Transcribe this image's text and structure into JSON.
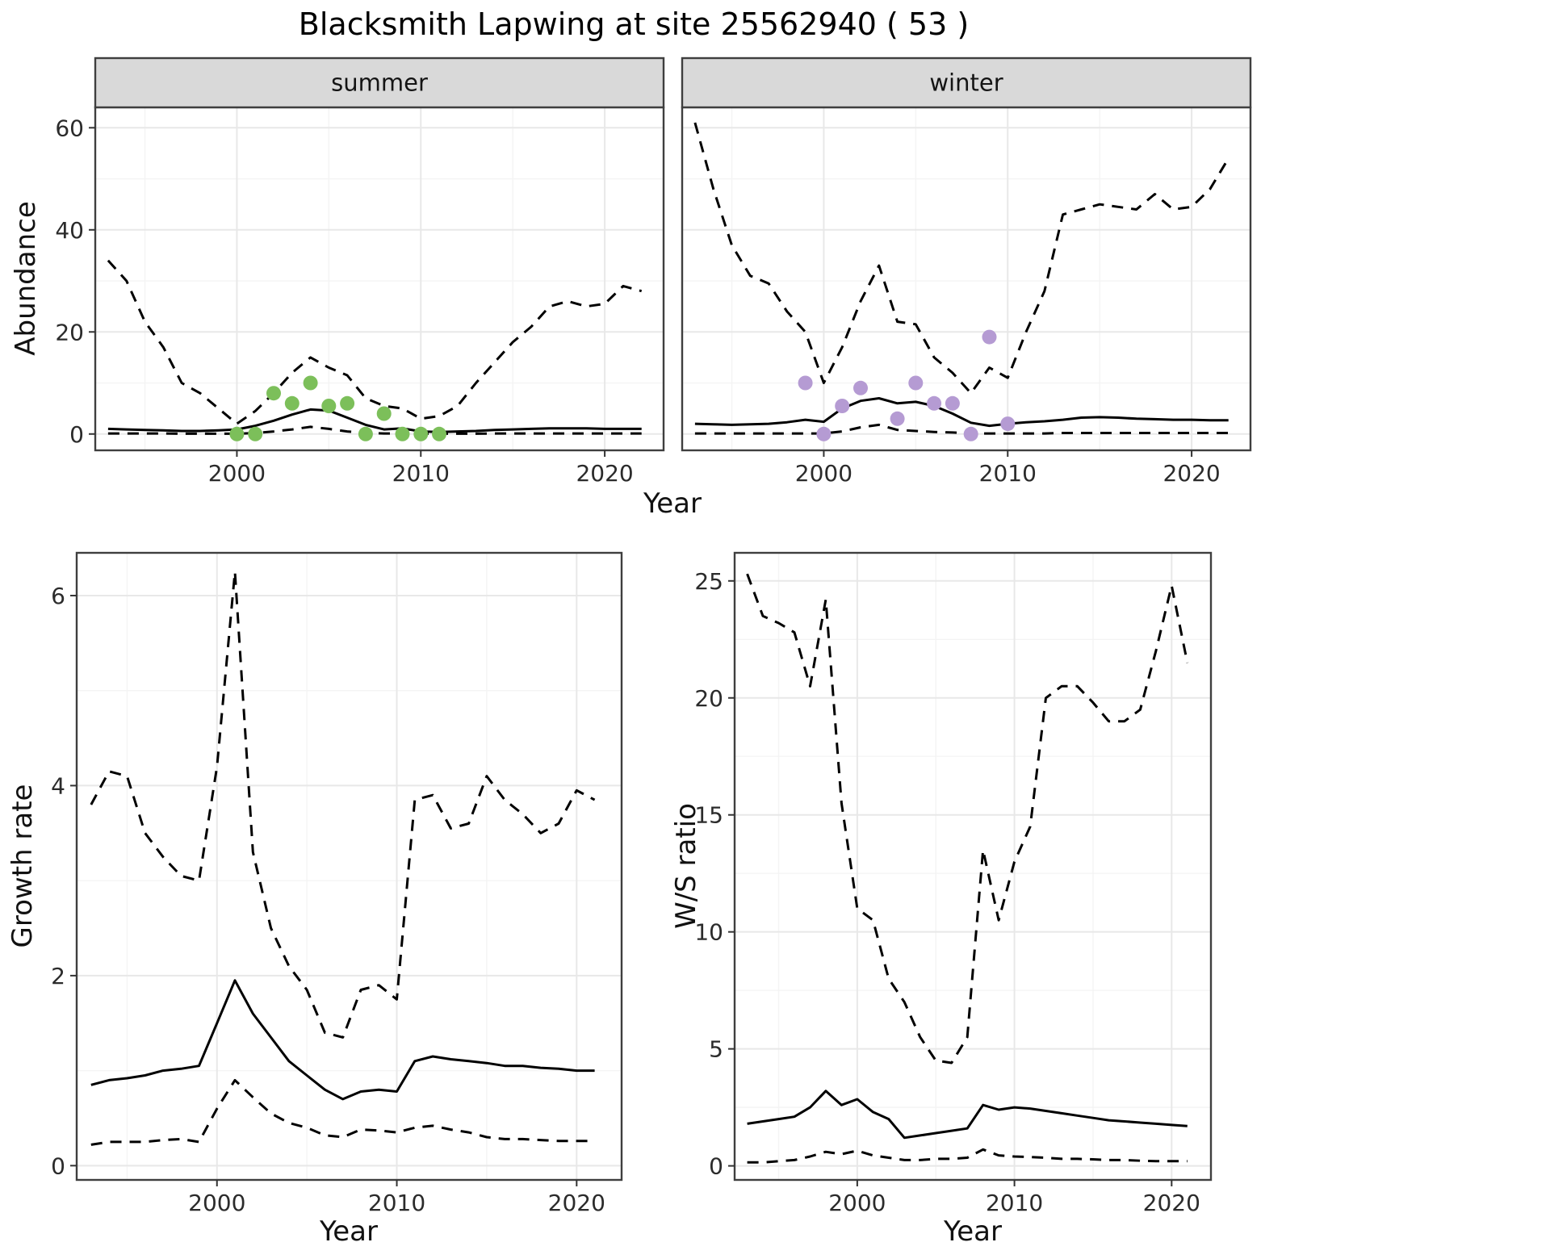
{
  "title": "Blacksmith Lapwing at site 25562940 ( 53 )",
  "axes": {
    "top_ylabel": "Abundance",
    "top_xlabel": "Year",
    "bottom_left_ylabel": "Growth rate",
    "bottom_left_xlabel": "Year",
    "bottom_right_ylabel": "W/S ratio",
    "bottom_right_xlabel": "Year"
  },
  "facets": [
    "summer",
    "winter"
  ],
  "style": {
    "background": "#ffffff",
    "strip_bg": "#d9d9d9",
    "strip_text": "#141414",
    "panel_border": "#3f3f3f",
    "grid_major": "#e8e8e8",
    "grid_minor": "#f4f4f4",
    "line_color": "#000000",
    "tick_text": "#2b2b2b",
    "summer_point_color": "#7cbf5a",
    "winter_point_color": "#b59bd3"
  },
  "chart_data": [
    {
      "id": "abundance-summer",
      "type": "line",
      "facet": "summer",
      "title": "",
      "xlabel": "Year",
      "ylabel": "Abundance",
      "xlim": [
        1992.3,
        2023.2
      ],
      "ylim": [
        -3.2,
        64
      ],
      "xticks": [
        2000,
        2010,
        2020
      ],
      "yticks": [
        0,
        20,
        40,
        60
      ],
      "grid": true,
      "legend": "none",
      "x": [
        1993,
        1994,
        1995,
        1996,
        1997,
        1998,
        1999,
        2000,
        2001,
        2002,
        2003,
        2004,
        2005,
        2006,
        2007,
        2008,
        2009,
        2010,
        2011,
        2012,
        2013,
        2014,
        2015,
        2016,
        2017,
        2018,
        2019,
        2020,
        2021,
        2022
      ],
      "series": [
        {
          "name": "upper_95ci",
          "style": "dashed",
          "y": [
            34,
            30,
            22,
            17,
            10,
            8,
            5,
            2,
            4.5,
            8,
            12,
            15,
            13,
            11.5,
            7,
            5.5,
            5,
            3,
            3.5,
            5.5,
            10,
            14,
            18,
            21,
            25,
            26,
            25,
            25.5,
            29,
            28
          ]
        },
        {
          "name": "mean",
          "style": "solid",
          "y": [
            1.0,
            0.9,
            0.8,
            0.7,
            0.6,
            0.6,
            0.7,
            0.9,
            1.6,
            2.6,
            3.8,
            4.8,
            4.6,
            3.2,
            1.8,
            0.9,
            1.1,
            0.5,
            0.4,
            0.5,
            0.6,
            0.8,
            0.9,
            1.0,
            1.1,
            1.1,
            1.1,
            1.0,
            1.0,
            1.0
          ]
        },
        {
          "name": "lower_95ci",
          "style": "dashed",
          "y": [
            0.1,
            0.1,
            0.1,
            0.1,
            0.05,
            0.05,
            0.05,
            0.05,
            0.2,
            0.5,
            0.9,
            1.4,
            1.0,
            0.5,
            0.2,
            0.1,
            0.1,
            0.05,
            0.05,
            0.05,
            0.05,
            0.1,
            0.1,
            0.1,
            0.1,
            0.1,
            0.1,
            0.1,
            0.1,
            0.1
          ]
        }
      ],
      "points": {
        "name": "observed-counts-summer",
        "color": "#7cbf5a",
        "x": [
          2000,
          2001,
          2002,
          2003,
          2004,
          2005,
          2006,
          2007,
          2008,
          2009,
          2010,
          2011
        ],
        "y": [
          0,
          0,
          8,
          6,
          10,
          5.5,
          6,
          0,
          4,
          0,
          0,
          0
        ]
      }
    },
    {
      "id": "abundance-winter",
      "type": "line",
      "facet": "winter",
      "title": "",
      "xlabel": "Year",
      "ylabel": "Abundance",
      "xlim": [
        1992.3,
        2023.2
      ],
      "ylim": [
        -3.2,
        64
      ],
      "xticks": [
        2000,
        2010,
        2020
      ],
      "yticks": [
        0,
        20,
        40,
        60
      ],
      "grid": true,
      "legend": "none",
      "x": [
        1993,
        1994,
        1995,
        1996,
        1997,
        1998,
        1999,
        2000,
        2001,
        2002,
        2003,
        2004,
        2005,
        2006,
        2007,
        2008,
        2009,
        2010,
        2011,
        2012,
        2013,
        2014,
        2015,
        2016,
        2017,
        2018,
        2019,
        2020,
        2021,
        2022
      ],
      "series": [
        {
          "name": "upper_95ci",
          "style": "dashed",
          "y": [
            61,
            48,
            37,
            31,
            29.5,
            24,
            20,
            10,
            17,
            26,
            33,
            22,
            21.5,
            15,
            12,
            8,
            13,
            11,
            20,
            28,
            43,
            44,
            45,
            44.5,
            44,
            47,
            44,
            44.5,
            48,
            54
          ]
        },
        {
          "name": "mean",
          "style": "solid",
          "y": [
            2.0,
            1.9,
            1.8,
            1.9,
            2.0,
            2.3,
            2.8,
            2.4,
            5.0,
            6.5,
            7.0,
            6.0,
            6.3,
            5.5,
            4.0,
            2.2,
            1.6,
            2.0,
            2.3,
            2.5,
            2.8,
            3.2,
            3.3,
            3.2,
            3.0,
            2.9,
            2.8,
            2.8,
            2.7,
            2.7
          ]
        },
        {
          "name": "lower_95ci",
          "style": "dashed",
          "y": [
            0.1,
            0.1,
            0.1,
            0.1,
            0.1,
            0.1,
            0.1,
            0.1,
            0.5,
            1.3,
            1.8,
            0.8,
            0.6,
            0.4,
            0.3,
            0.1,
            0.1,
            0.1,
            0.1,
            0.1,
            0.2,
            0.2,
            0.2,
            0.2,
            0.2,
            0.2,
            0.2,
            0.2,
            0.2,
            0.2
          ]
        }
      ],
      "points": {
        "name": "observed-counts-winter",
        "color": "#b59bd3",
        "x": [
          1999,
          2000,
          2001,
          2002,
          2004,
          2005,
          2006,
          2007,
          2008,
          2009,
          2010
        ],
        "y": [
          10,
          0,
          5.5,
          9,
          3,
          10,
          6,
          6,
          0,
          19,
          2
        ]
      }
    },
    {
      "id": "growth-rate",
      "type": "line",
      "facet": null,
      "title": "",
      "xlabel": "Year",
      "ylabel": "Growth rate",
      "xlim": [
        1992.2,
        2022.5
      ],
      "ylim": [
        -0.15,
        6.45
      ],
      "xticks": [
        2000,
        2010,
        2020
      ],
      "yticks": [
        0,
        2,
        4,
        6
      ],
      "grid": true,
      "legend": "none",
      "x": [
        1993,
        1994,
        1995,
        1996,
        1997,
        1998,
        1999,
        2000,
        2001,
        2002,
        2003,
        2004,
        2005,
        2006,
        2007,
        2008,
        2009,
        2010,
        2011,
        2012,
        2013,
        2014,
        2015,
        2016,
        2017,
        2018,
        2019,
        2020,
        2021
      ],
      "series": [
        {
          "name": "upper_95ci",
          "style": "dashed",
          "y": [
            3.8,
            4.15,
            4.1,
            3.5,
            3.25,
            3.05,
            3.0,
            4.2,
            6.25,
            3.3,
            2.5,
            2.1,
            1.85,
            1.4,
            1.35,
            1.85,
            1.9,
            1.75,
            3.85,
            3.9,
            3.55,
            3.6,
            4.1,
            3.85,
            3.7,
            3.5,
            3.6,
            3.95,
            3.85
          ]
        },
        {
          "name": "mean",
          "style": "solid",
          "y": [
            0.85,
            0.9,
            0.92,
            0.95,
            1.0,
            1.02,
            1.05,
            1.5,
            1.95,
            1.6,
            1.35,
            1.1,
            0.95,
            0.8,
            0.7,
            0.78,
            0.8,
            0.78,
            1.1,
            1.15,
            1.12,
            1.1,
            1.08,
            1.05,
            1.05,
            1.03,
            1.02,
            1.0,
            1.0
          ]
        },
        {
          "name": "lower_95ci",
          "style": "dashed",
          "y": [
            0.22,
            0.25,
            0.25,
            0.25,
            0.27,
            0.28,
            0.25,
            0.6,
            0.9,
            0.72,
            0.55,
            0.45,
            0.4,
            0.32,
            0.3,
            0.38,
            0.37,
            0.35,
            0.4,
            0.42,
            0.38,
            0.35,
            0.3,
            0.28,
            0.28,
            0.27,
            0.26,
            0.26,
            0.26
          ]
        }
      ],
      "points": null
    },
    {
      "id": "ws-ratio",
      "type": "line",
      "facet": null,
      "title": "",
      "xlabel": "Year",
      "ylabel": "W/S ratio",
      "xlim": [
        1992.2,
        2022.5
      ],
      "ylim": [
        -0.6,
        26.2
      ],
      "xticks": [
        2000,
        2010,
        2020
      ],
      "yticks": [
        0,
        5,
        10,
        15,
        20,
        25
      ],
      "grid": true,
      "legend": "none",
      "x": [
        1993,
        1994,
        1995,
        1996,
        1997,
        1998,
        1999,
        2000,
        2001,
        2002,
        2003,
        2004,
        2005,
        2006,
        2007,
        2008,
        2009,
        2010,
        2011,
        2012,
        2013,
        2014,
        2015,
        2016,
        2017,
        2018,
        2019,
        2020,
        2021
      ],
      "series": [
        {
          "name": "upper_95ci",
          "style": "dashed",
          "y": [
            25.3,
            23.5,
            23.2,
            22.8,
            20.5,
            24.2,
            15.5,
            11.0,
            10.5,
            8.0,
            7.0,
            5.5,
            4.5,
            4.4,
            5.5,
            13.5,
            10.5,
            13.0,
            14.5,
            20.0,
            20.5,
            20.5,
            19.8,
            19.0,
            19.0,
            19.5,
            22.0,
            24.8,
            21.5
          ]
        },
        {
          "name": "mean",
          "style": "solid",
          "y": [
            1.8,
            1.9,
            2.0,
            2.1,
            2.5,
            3.2,
            2.6,
            2.85,
            2.3,
            2.0,
            1.2,
            1.3,
            1.4,
            1.5,
            1.6,
            2.6,
            2.4,
            2.5,
            2.45,
            2.35,
            2.25,
            2.15,
            2.05,
            1.95,
            1.9,
            1.85,
            1.8,
            1.75,
            1.7
          ]
        },
        {
          "name": "lower_95ci",
          "style": "dashed",
          "y": [
            0.15,
            0.15,
            0.2,
            0.25,
            0.4,
            0.6,
            0.5,
            0.65,
            0.45,
            0.35,
            0.25,
            0.25,
            0.3,
            0.3,
            0.35,
            0.7,
            0.45,
            0.4,
            0.38,
            0.35,
            0.3,
            0.3,
            0.28,
            0.25,
            0.25,
            0.22,
            0.2,
            0.2,
            0.2
          ]
        }
      ],
      "points": null
    }
  ]
}
